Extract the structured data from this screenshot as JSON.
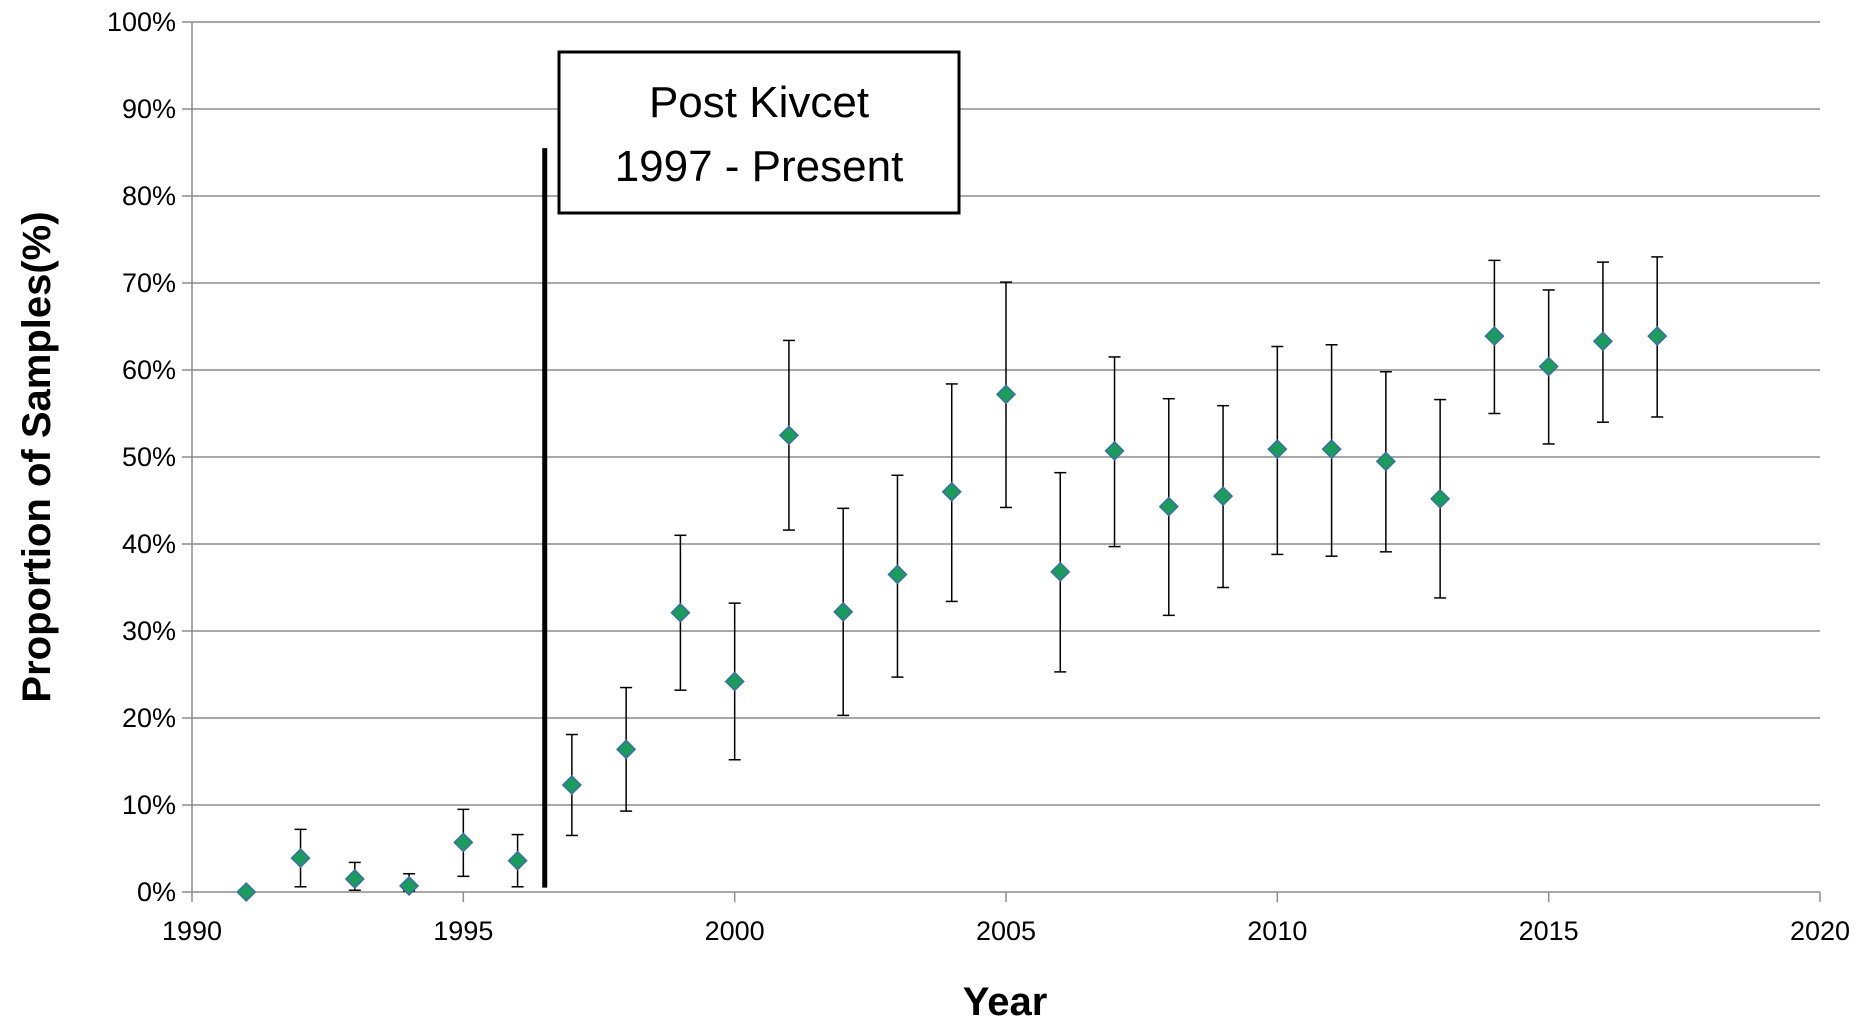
{
  "chart_data": {
    "type": "scatter",
    "title": "",
    "xlabel": "Year",
    "ylabel": "Proportion of Samples(%)",
    "xlim": [
      1990,
      2020
    ],
    "ylim": [
      0,
      100
    ],
    "x_ticks": [
      1990,
      1995,
      2000,
      2005,
      2010,
      2015,
      2020
    ],
    "x_tick_labels": [
      "1990",
      "1995",
      "2000",
      "2005",
      "2010",
      "2015",
      "2020"
    ],
    "y_ticks": [
      0,
      10,
      20,
      30,
      40,
      50,
      60,
      70,
      80,
      90,
      100
    ],
    "y_tick_labels": [
      "0%",
      "10%",
      "20%",
      "30%",
      "40%",
      "50%",
      "60%",
      "70%",
      "80%",
      "90%",
      "100%"
    ],
    "grid": "horizontal",
    "marker": "diamond",
    "marker_color": "#1a9c5b",
    "marker_edge_color": "#3b6ea8",
    "error_bar_color": "#000000",
    "points": [
      {
        "x": 1991,
        "y": 0.0,
        "low": 0.0,
        "high": 0.0
      },
      {
        "x": 1992,
        "y": 3.9,
        "low": 0.6,
        "high": 7.2
      },
      {
        "x": 1993,
        "y": 1.5,
        "low": 0.2,
        "high": 3.4
      },
      {
        "x": 1994,
        "y": 0.7,
        "low": 0.1,
        "high": 2.1
      },
      {
        "x": 1995,
        "y": 5.7,
        "low": 1.8,
        "high": 9.5
      },
      {
        "x": 1996,
        "y": 3.6,
        "low": 0.6,
        "high": 6.6
      },
      {
        "x": 1997,
        "y": 12.3,
        "low": 6.5,
        "high": 18.1
      },
      {
        "x": 1998,
        "y": 16.4,
        "low": 9.3,
        "high": 23.5
      },
      {
        "x": 1999,
        "y": 32.1,
        "low": 23.2,
        "high": 41.0
      },
      {
        "x": 2000,
        "y": 24.2,
        "low": 15.2,
        "high": 33.2
      },
      {
        "x": 2001,
        "y": 52.5,
        "low": 41.6,
        "high": 63.4
      },
      {
        "x": 2002,
        "y": 32.2,
        "low": 20.3,
        "high": 44.1
      },
      {
        "x": 2003,
        "y": 36.5,
        "low": 24.7,
        "high": 47.9
      },
      {
        "x": 2004,
        "y": 46.0,
        "low": 33.4,
        "high": 58.4
      },
      {
        "x": 2005,
        "y": 57.2,
        "low": 44.2,
        "high": 70.1
      },
      {
        "x": 2006,
        "y": 36.8,
        "low": 25.3,
        "high": 48.2
      },
      {
        "x": 2007,
        "y": 50.7,
        "low": 39.7,
        "high": 61.5
      },
      {
        "x": 2008,
        "y": 44.3,
        "low": 31.8,
        "high": 56.7
      },
      {
        "x": 2009,
        "y": 45.5,
        "low": 35.0,
        "high": 55.9
      },
      {
        "x": 2010,
        "y": 50.9,
        "low": 38.8,
        "high": 62.7
      },
      {
        "x": 2011,
        "y": 50.9,
        "low": 38.6,
        "high": 62.9
      },
      {
        "x": 2012,
        "y": 49.5,
        "low": 39.1,
        "high": 59.8
      },
      {
        "x": 2013,
        "y": 45.2,
        "low": 33.8,
        "high": 56.6
      },
      {
        "x": 2014,
        "y": 63.9,
        "low": 55.0,
        "high": 72.6
      },
      {
        "x": 2015,
        "y": 60.4,
        "low": 51.5,
        "high": 69.2
      },
      {
        "x": 2016,
        "y": 63.3,
        "low": 54.0,
        "high": 72.4
      },
      {
        "x": 2017,
        "y": 63.9,
        "low": 54.6,
        "high": 73.0
      }
    ],
    "reference_line": {
      "x": 1996.5,
      "y_from": 0.5,
      "y_to": 85.5
    },
    "annotation": {
      "lines": [
        "Post Kivcet",
        "1997 - Present"
      ]
    }
  }
}
